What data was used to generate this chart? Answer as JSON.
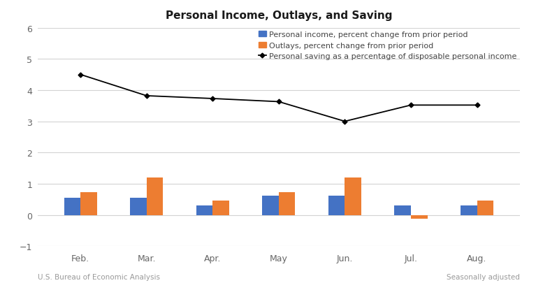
{
  "title": "Personal Income, Outlays, and Saving",
  "categories": [
    "Feb.",
    "Mar.",
    "Apr.",
    "May",
    "Jun.",
    "Jul.",
    "Aug."
  ],
  "personal_income": [
    0.55,
    0.55,
    0.3,
    0.62,
    0.62,
    0.3,
    0.3
  ],
  "outlays": [
    0.72,
    1.2,
    0.45,
    0.72,
    1.2,
    -0.12,
    0.45
  ],
  "saving_rate": [
    4.5,
    3.82,
    3.73,
    3.63,
    3.0,
    3.52,
    3.52
  ],
  "bar_color_income": "#4472c4",
  "bar_color_outlays": "#ed7d31",
  "line_color": "#000000",
  "ylim": [
    -1,
    6
  ],
  "yticks": [
    -1,
    0,
    1,
    2,
    3,
    4,
    5,
    6
  ],
  "legend_income": "Personal income, percent change from prior period",
  "legend_outlays": "Outlays, percent change from prior period",
  "legend_saving": "Personal saving as a percentage of disposable personal income",
  "footnote_left": "U.S. Bureau of Economic Analysis",
  "footnote_right": "Seasonally adjusted",
  "bar_width": 0.25,
  "background_color": "#ffffff",
  "grid_color": "#d3d3d3",
  "title_fontsize": 11,
  "tick_fontsize": 9,
  "legend_fontsize": 8,
  "footnote_fontsize": 7.5
}
